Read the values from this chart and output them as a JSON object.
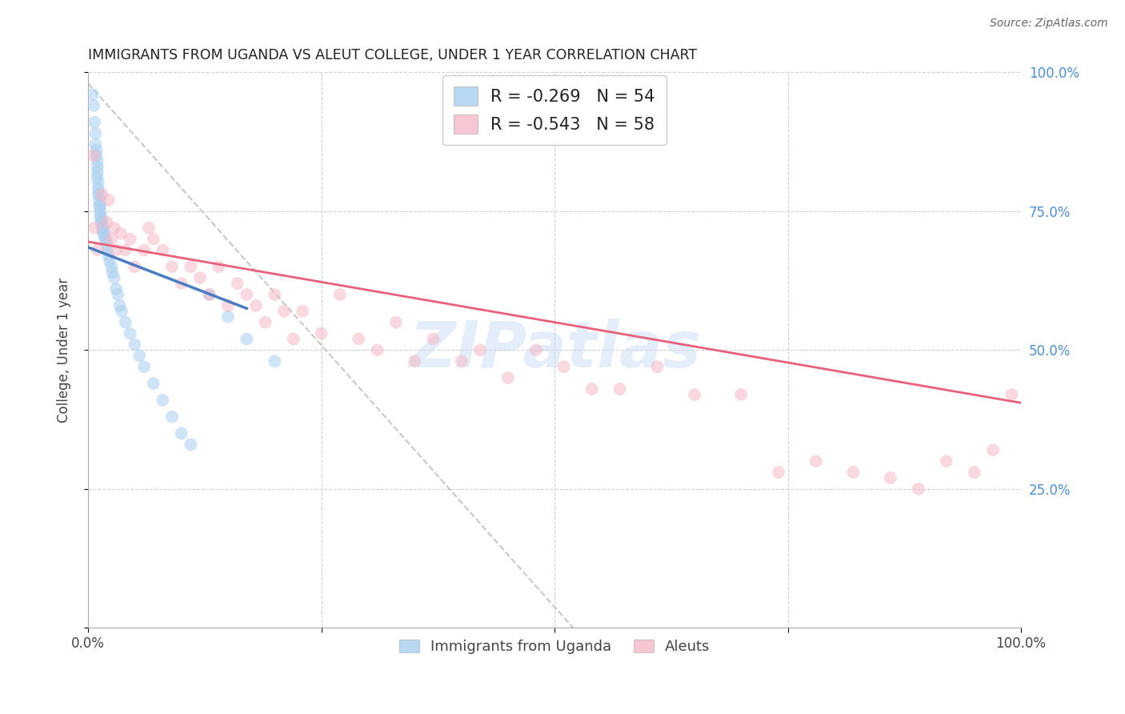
{
  "title": "IMMIGRANTS FROM UGANDA VS ALEUT COLLEGE, UNDER 1 YEAR CORRELATION CHART",
  "source": "Source: ZipAtlas.com",
  "ylabel": "College, Under 1 year",
  "watermark": "ZIPatlas",
  "blue_color": "#a8cff0",
  "pink_color": "#f5b8c8",
  "blue_line_color": "#4a7cc4",
  "pink_line_color": "#e8607a",
  "dashed_line_color": "#c8c8c8",
  "xlim": [
    0.0,
    1.0
  ],
  "ylim": [
    0.0,
    1.0
  ],
  "yticks": [
    0.0,
    0.25,
    0.5,
    0.75,
    1.0
  ],
  "ytick_labels_right": [
    "",
    "25.0%",
    "50.0%",
    "75.0%",
    "100.0%"
  ],
  "xtick_labels": [
    "0.0%",
    "",
    "",
    "",
    "100.0%"
  ],
  "legend_r1": "-0.269",
  "legend_n1": "54",
  "legend_r2": "-0.543",
  "legend_n2": "58",
  "blue_scatter_x": [
    0.005,
    0.006,
    0.007,
    0.008,
    0.008,
    0.009,
    0.009,
    0.01,
    0.01,
    0.01,
    0.01,
    0.011,
    0.011,
    0.011,
    0.012,
    0.012,
    0.012,
    0.013,
    0.013,
    0.013,
    0.014,
    0.014,
    0.015,
    0.015,
    0.016,
    0.016,
    0.017,
    0.018,
    0.019,
    0.02,
    0.021,
    0.022,
    0.023,
    0.025,
    0.026,
    0.028,
    0.03,
    0.032,
    0.034,
    0.036,
    0.04,
    0.045,
    0.05,
    0.055,
    0.06,
    0.07,
    0.08,
    0.09,
    0.1,
    0.11,
    0.13,
    0.15,
    0.17,
    0.2
  ],
  "blue_scatter_y": [
    0.96,
    0.94,
    0.91,
    0.89,
    0.87,
    0.86,
    0.85,
    0.84,
    0.83,
    0.82,
    0.81,
    0.8,
    0.79,
    0.78,
    0.78,
    0.77,
    0.76,
    0.76,
    0.75,
    0.74,
    0.74,
    0.73,
    0.73,
    0.72,
    0.72,
    0.71,
    0.71,
    0.7,
    0.7,
    0.69,
    0.68,
    0.67,
    0.66,
    0.65,
    0.64,
    0.63,
    0.61,
    0.6,
    0.58,
    0.57,
    0.55,
    0.53,
    0.51,
    0.49,
    0.47,
    0.44,
    0.41,
    0.38,
    0.35,
    0.33,
    0.6,
    0.56,
    0.52,
    0.48
  ],
  "pink_scatter_x": [
    0.006,
    0.007,
    0.01,
    0.015,
    0.02,
    0.022,
    0.025,
    0.028,
    0.03,
    0.035,
    0.04,
    0.045,
    0.05,
    0.06,
    0.065,
    0.07,
    0.08,
    0.09,
    0.1,
    0.11,
    0.12,
    0.13,
    0.14,
    0.15,
    0.16,
    0.17,
    0.18,
    0.19,
    0.2,
    0.21,
    0.22,
    0.23,
    0.25,
    0.27,
    0.29,
    0.31,
    0.33,
    0.35,
    0.37,
    0.4,
    0.42,
    0.45,
    0.48,
    0.51,
    0.54,
    0.57,
    0.61,
    0.65,
    0.7,
    0.74,
    0.78,
    0.82,
    0.86,
    0.89,
    0.92,
    0.95,
    0.97,
    0.99
  ],
  "pink_scatter_y": [
    0.85,
    0.72,
    0.68,
    0.78,
    0.73,
    0.77,
    0.7,
    0.72,
    0.68,
    0.71,
    0.68,
    0.7,
    0.65,
    0.68,
    0.72,
    0.7,
    0.68,
    0.65,
    0.62,
    0.65,
    0.63,
    0.6,
    0.65,
    0.58,
    0.62,
    0.6,
    0.58,
    0.55,
    0.6,
    0.57,
    0.52,
    0.57,
    0.53,
    0.6,
    0.52,
    0.5,
    0.55,
    0.48,
    0.52,
    0.48,
    0.5,
    0.45,
    0.5,
    0.47,
    0.43,
    0.43,
    0.47,
    0.42,
    0.42,
    0.28,
    0.3,
    0.28,
    0.27,
    0.25,
    0.3,
    0.28,
    0.32,
    0.42
  ],
  "blue_trendline_x": [
    0.0,
    0.17
  ],
  "blue_trendline_y": [
    0.685,
    0.575
  ],
  "pink_trendline_x": [
    0.0,
    1.0
  ],
  "pink_trendline_y": [
    0.695,
    0.405
  ],
  "dashed_line_x": [
    0.0,
    0.52
  ],
  "dashed_line_y": [
    0.98,
    0.0
  ]
}
